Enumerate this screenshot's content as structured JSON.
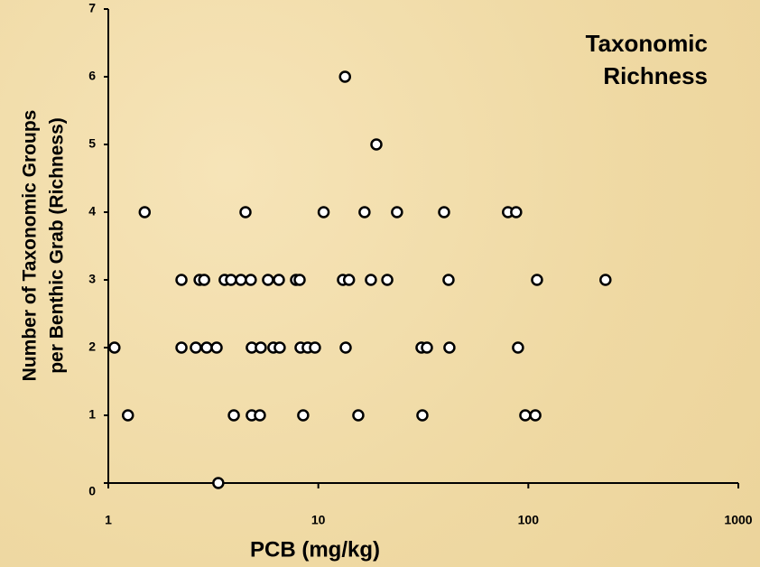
{
  "chart_data": {
    "type": "scatter",
    "title": "Taxonomic Richness",
    "xlabel": "PCB (mg/kg)",
    "ylabel": [
      "Number of Taxonomic Groups",
      "per Benthic Grab (Richness)"
    ],
    "xscale": "log",
    "color": "#ffffff",
    "edgecolor": "#000000",
    "xlim": [
      1,
      1000
    ],
    "xticks": [
      1,
      10,
      100,
      1000
    ],
    "ylim": [
      0,
      7
    ],
    "yticks": [
      0,
      1,
      2,
      3,
      4,
      5,
      6,
      7
    ],
    "x": [
      13.4,
      18.9,
      1.49,
      4.5,
      10.6,
      16.6,
      23.7,
      39.7,
      80,
      87.5,
      2.23,
      2.72,
      2.86,
      3.58,
      3.84,
      4.28,
      4.77,
      5.76,
      6.49,
      7.83,
      8.15,
      13.1,
      14.0,
      17.8,
      21.3,
      41.7,
      110,
      233,
      1.07,
      2.23,
      2.61,
      2.94,
      3.28,
      4.82,
      5.32,
      6.11,
      6.55,
      8.23,
      8.9,
      9.64,
      13.5,
      31.0,
      32.9,
      42.1,
      89.3,
      1.24,
      3.96,
      4.82,
      5.27,
      8.47,
      15.5,
      31.3,
      96.7,
      108,
      3.34
    ],
    "values": [
      6,
      5,
      4,
      4,
      4,
      4,
      4,
      4,
      4,
      4,
      3,
      3,
      3,
      3,
      3,
      3,
      3,
      3,
      3,
      3,
      3,
      3,
      3,
      3,
      3,
      3,
      3,
      3,
      2,
      2,
      2,
      2,
      2,
      2,
      2,
      2,
      2,
      2,
      2,
      2,
      2,
      2,
      2,
      2,
      2,
      1,
      1,
      1,
      1,
      1,
      1,
      1,
      1,
      1,
      0
    ]
  }
}
